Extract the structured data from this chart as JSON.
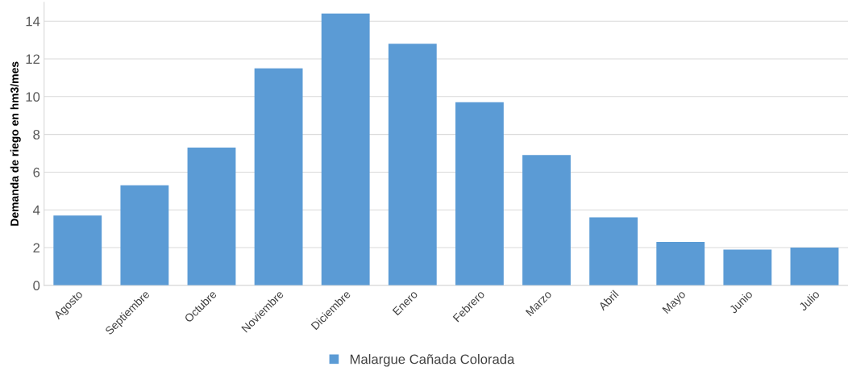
{
  "chart_data": {
    "type": "bar",
    "ylabel": "Demanda de riego en hm3/mes",
    "categories": [
      "Agosto",
      "Septiembre",
      "Octubre",
      "Noviembre",
      "Diciembre",
      "Enero",
      "Febrero",
      "Marzo",
      "Abril",
      "Mayo",
      "Junio",
      "Julio"
    ],
    "series": [
      {
        "name": "Malargue Cañada Colorada",
        "color": "#5b9bd5",
        "values": [
          3.7,
          5.3,
          7.3,
          11.5,
          14.4,
          12.8,
          9.7,
          6.9,
          3.6,
          2.3,
          1.9,
          2.0
        ]
      }
    ],
    "ylim": [
      0,
      15
    ],
    "yticks": [
      0,
      2,
      4,
      6,
      8,
      10,
      12,
      14
    ],
    "grid": "y",
    "legend": "bottom"
  }
}
